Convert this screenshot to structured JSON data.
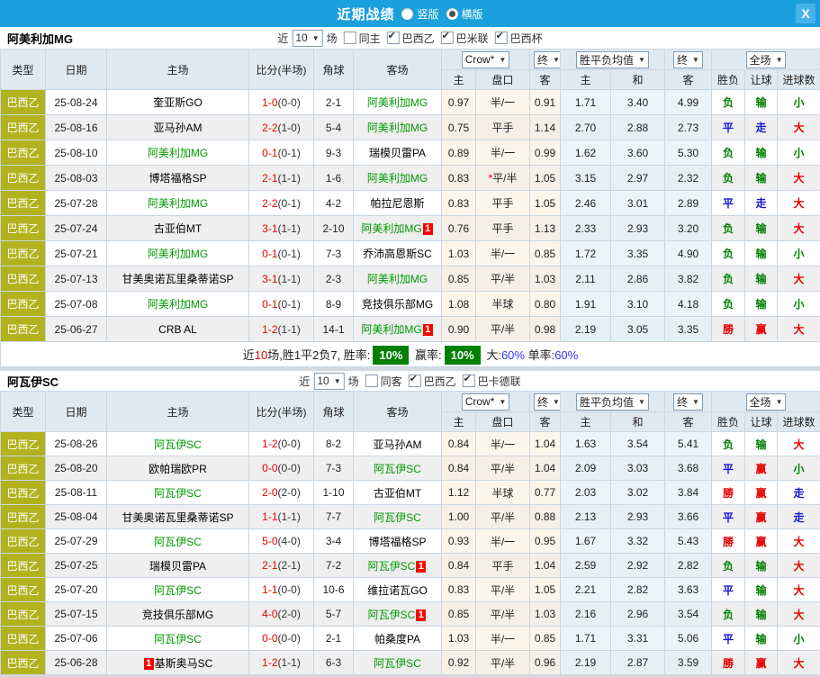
{
  "titlebar": {
    "title": "近期战绩",
    "options": [
      {
        "label": "竖版",
        "selected": false
      },
      {
        "label": "横版",
        "selected": true
      }
    ],
    "close_label": "X"
  },
  "header_cols": {
    "type": "类型",
    "date": "日期",
    "home": "主场",
    "score": "比分(半场)",
    "corner": "角球",
    "away": "客场",
    "odds_home": "主",
    "odds_handicap": "盘口",
    "odds_away": "客",
    "avg_home": "主",
    "avg_draw": "和",
    "avg_away": "客",
    "result": "胜负",
    "handicap": "让球",
    "goals": "进球数"
  },
  "group_selects": {
    "odds": "Crow*",
    "final": "终",
    "avg": "胜平负均值",
    "final2": "终",
    "fulltime": "全场"
  },
  "badge_label": "1",
  "colors": {
    "topbar": "#1b9fdd",
    "type_cell": "#b2b21e",
    "focus_team": "#009900",
    "win_red": "#e60000",
    "lose_green": "#008000",
    "draw_blue": "#1515cd",
    "rate_box": "#008000",
    "header_bg": "#dfe9f2"
  },
  "sections": [
    {
      "team": "阿美利加MG",
      "filters": {
        "near": "近",
        "count": "10",
        "games": "场",
        "same": "同主",
        "same_checked": false,
        "leagues": [
          {
            "label": "巴西乙",
            "checked": true
          },
          {
            "label": "巴米联",
            "checked": true
          },
          {
            "label": "巴西杯",
            "checked": true
          }
        ]
      },
      "rows": [
        {
          "league": "巴西乙",
          "date": "25-08-24",
          "home": {
            "name": "奎亚斯GO"
          },
          "score": "1-0",
          "half": "(0-0)",
          "corner": "2-1",
          "away": {
            "name": "阿美利加MG",
            "focus": true
          },
          "odds": [
            "0.97",
            "半/一",
            "0.91"
          ],
          "star": false,
          "avg": [
            "1.71",
            "3.40",
            "4.99"
          ],
          "res": [
            [
              "负",
              "g"
            ],
            [
              "输",
              "g"
            ],
            [
              "小",
              "g"
            ]
          ]
        },
        {
          "league": "巴西乙",
          "date": "25-08-16",
          "home": {
            "name": "亚马孙AM"
          },
          "score": "2-2",
          "half": "(1-0)",
          "corner": "5-4",
          "away": {
            "name": "阿美利加MG",
            "focus": true
          },
          "odds": [
            "0.75",
            "平手",
            "1.14"
          ],
          "star": false,
          "avg": [
            "2.70",
            "2.88",
            "2.73"
          ],
          "res": [
            [
              "平",
              "b"
            ],
            [
              "走",
              "b"
            ],
            [
              "大",
              "r"
            ]
          ]
        },
        {
          "league": "巴西乙",
          "date": "25-08-10",
          "home": {
            "name": "阿美利加MG",
            "focus": true
          },
          "score": "0-1",
          "half": "(0-1)",
          "corner": "9-3",
          "away": {
            "name": "瑞模贝雷PA"
          },
          "odds": [
            "0.89",
            "半/一",
            "0.99"
          ],
          "star": false,
          "avg": [
            "1.62",
            "3.60",
            "5.30"
          ],
          "res": [
            [
              "负",
              "g"
            ],
            [
              "输",
              "g"
            ],
            [
              "小",
              "g"
            ]
          ]
        },
        {
          "league": "巴西乙",
          "date": "25-08-03",
          "home": {
            "name": "博塔福格SP"
          },
          "score": "2-1",
          "half": "(1-1)",
          "corner": "1-6",
          "away": {
            "name": "阿美利加MG",
            "focus": true
          },
          "odds": [
            "0.83",
            "平/半",
            "1.05"
          ],
          "star": true,
          "avg": [
            "3.15",
            "2.97",
            "2.32"
          ],
          "res": [
            [
              "负",
              "g"
            ],
            [
              "输",
              "g"
            ],
            [
              "大",
              "r"
            ]
          ]
        },
        {
          "league": "巴西乙",
          "date": "25-07-28",
          "home": {
            "name": "阿美利加MG",
            "focus": true
          },
          "score": "2-2",
          "half": "(0-1)",
          "corner": "4-2",
          "away": {
            "name": "帕拉尼恩斯"
          },
          "odds": [
            "0.83",
            "平手",
            "1.05"
          ],
          "star": false,
          "avg": [
            "2.46",
            "3.01",
            "2.89"
          ],
          "res": [
            [
              "平",
              "b"
            ],
            [
              "走",
              "b"
            ],
            [
              "大",
              "r"
            ]
          ]
        },
        {
          "league": "巴西乙",
          "date": "25-07-24",
          "home": {
            "name": "古亚伯MT"
          },
          "score": "3-1",
          "half": "(1-1)",
          "corner": "2-10",
          "away": {
            "name": "阿美利加MG",
            "focus": true,
            "badge": true
          },
          "odds": [
            "0.76",
            "平手",
            "1.13"
          ],
          "star": false,
          "avg": [
            "2.33",
            "2.93",
            "3.20"
          ],
          "res": [
            [
              "负",
              "g"
            ],
            [
              "输",
              "g"
            ],
            [
              "大",
              "r"
            ]
          ]
        },
        {
          "league": "巴西乙",
          "date": "25-07-21",
          "home": {
            "name": "阿美利加MG",
            "focus": true
          },
          "score": "0-1",
          "half": "(0-1)",
          "corner": "7-3",
          "away": {
            "name": "乔沛高恩斯SC"
          },
          "odds": [
            "1.03",
            "半/一",
            "0.85"
          ],
          "star": false,
          "avg": [
            "1.72",
            "3.35",
            "4.90"
          ],
          "res": [
            [
              "负",
              "g"
            ],
            [
              "输",
              "g"
            ],
            [
              "小",
              "g"
            ]
          ]
        },
        {
          "league": "巴西乙",
          "date": "25-07-13",
          "home": {
            "name": "甘美奥诺瓦里桑蒂诺SP"
          },
          "score": "3-1",
          "half": "(1-1)",
          "corner": "2-3",
          "away": {
            "name": "阿美利加MG",
            "focus": true
          },
          "odds": [
            "0.85",
            "平/半",
            "1.03"
          ],
          "star": false,
          "avg": [
            "2.11",
            "2.86",
            "3.82"
          ],
          "res": [
            [
              "负",
              "g"
            ],
            [
              "输",
              "g"
            ],
            [
              "大",
              "r"
            ]
          ]
        },
        {
          "league": "巴西乙",
          "date": "25-07-08",
          "home": {
            "name": "阿美利加MG",
            "focus": true
          },
          "score": "0-1",
          "half": "(0-1)",
          "corner": "8-9",
          "away": {
            "name": "竞技俱乐部MG"
          },
          "odds": [
            "1.08",
            "半球",
            "0.80"
          ],
          "star": false,
          "avg": [
            "1.91",
            "3.10",
            "4.18"
          ],
          "res": [
            [
              "负",
              "g"
            ],
            [
              "输",
              "g"
            ],
            [
              "小",
              "g"
            ]
          ]
        },
        {
          "league": "巴西乙",
          "date": "25-06-27",
          "home": {
            "name": "CRB AL"
          },
          "score": "1-2",
          "half": "(1-1)",
          "corner": "14-1",
          "away": {
            "name": "阿美利加MG",
            "focus": true,
            "badge": true
          },
          "odds": [
            "0.90",
            "平/半",
            "0.98"
          ],
          "star": false,
          "avg": [
            "2.19",
            "3.05",
            "3.35"
          ],
          "res": [
            [
              "勝",
              "r"
            ],
            [
              "赢",
              "r"
            ],
            [
              "大",
              "r"
            ]
          ]
        }
      ],
      "summary_segments": [
        {
          "t": "近",
          "s": "k"
        },
        {
          "t": "10",
          "s": "r"
        },
        {
          "t": "场,胜1平2负7, 胜率:",
          "s": "k"
        },
        {
          "t": "10%",
          "s": "box"
        },
        {
          "t": " 赢率:",
          "s": "k"
        },
        {
          "t": "10%",
          "s": "box"
        },
        {
          "t": " 大:",
          "s": "k"
        },
        {
          "t": "60%",
          "s": "b"
        },
        {
          "t": " 单率:",
          "s": "k"
        },
        {
          "t": "60%",
          "s": "b"
        }
      ]
    },
    {
      "team": "阿瓦伊SC",
      "filters": {
        "near": "近",
        "count": "10",
        "games": "场",
        "same": "同客",
        "same_checked": false,
        "leagues": [
          {
            "label": "巴西乙",
            "checked": true
          },
          {
            "label": "巴卡德联",
            "checked": true
          }
        ]
      },
      "rows": [
        {
          "league": "巴西乙",
          "date": "25-08-26",
          "home": {
            "name": "阿瓦伊SC",
            "focus": true
          },
          "score": "1-2",
          "half": "(0-0)",
          "corner": "8-2",
          "away": {
            "name": "亚马孙AM"
          },
          "odds": [
            "0.84",
            "半/一",
            "1.04"
          ],
          "star": false,
          "avg": [
            "1.63",
            "3.54",
            "5.41"
          ],
          "res": [
            [
              "负",
              "g"
            ],
            [
              "输",
              "g"
            ],
            [
              "大",
              "r"
            ]
          ]
        },
        {
          "league": "巴西乙",
          "date": "25-08-20",
          "home": {
            "name": "欧帕瑞欧PR"
          },
          "score": "0-0",
          "half": "(0-0)",
          "corner": "7-3",
          "away": {
            "name": "阿瓦伊SC",
            "focus": true
          },
          "odds": [
            "0.84",
            "平/半",
            "1.04"
          ],
          "star": false,
          "avg": [
            "2.09",
            "3.03",
            "3.68"
          ],
          "res": [
            [
              "平",
              "b"
            ],
            [
              "赢",
              "r"
            ],
            [
              "小",
              "g"
            ]
          ]
        },
        {
          "league": "巴西乙",
          "date": "25-08-11",
          "home": {
            "name": "阿瓦伊SC",
            "focus": true
          },
          "score": "2-0",
          "half": "(2-0)",
          "corner": "1-10",
          "away": {
            "name": "古亚伯MT"
          },
          "odds": [
            "1.12",
            "半球",
            "0.77"
          ],
          "star": false,
          "avg": [
            "2.03",
            "3.02",
            "3.84"
          ],
          "res": [
            [
              "勝",
              "r"
            ],
            [
              "赢",
              "r"
            ],
            [
              "走",
              "b"
            ]
          ]
        },
        {
          "league": "巴西乙",
          "date": "25-08-04",
          "home": {
            "name": "甘美奥诺瓦里桑蒂诺SP"
          },
          "score": "1-1",
          "half": "(1-1)",
          "corner": "7-7",
          "away": {
            "name": "阿瓦伊SC",
            "focus": true
          },
          "odds": [
            "1.00",
            "平/半",
            "0.88"
          ],
          "star": false,
          "avg": [
            "2.13",
            "2.93",
            "3.66"
          ],
          "res": [
            [
              "平",
              "b"
            ],
            [
              "赢",
              "r"
            ],
            [
              "走",
              "b"
            ]
          ]
        },
        {
          "league": "巴西乙",
          "date": "25-07-29",
          "home": {
            "name": "阿瓦伊SC",
            "focus": true
          },
          "score": "5-0",
          "half": "(4-0)",
          "corner": "3-4",
          "away": {
            "name": "博塔福格SP"
          },
          "odds": [
            "0.93",
            "半/一",
            "0.95"
          ],
          "star": false,
          "avg": [
            "1.67",
            "3.32",
            "5.43"
          ],
          "res": [
            [
              "勝",
              "r"
            ],
            [
              "赢",
              "r"
            ],
            [
              "大",
              "r"
            ]
          ]
        },
        {
          "league": "巴西乙",
          "date": "25-07-25",
          "home": {
            "name": "瑞模贝雷PA"
          },
          "score": "2-1",
          "half": "(2-1)",
          "corner": "7-2",
          "away": {
            "name": "阿瓦伊SC",
            "focus": true,
            "badge": true
          },
          "odds": [
            "0.84",
            "平手",
            "1.04"
          ],
          "star": false,
          "avg": [
            "2.59",
            "2.92",
            "2.82"
          ],
          "res": [
            [
              "负",
              "g"
            ],
            [
              "输",
              "g"
            ],
            [
              "大",
              "r"
            ]
          ]
        },
        {
          "league": "巴西乙",
          "date": "25-07-20",
          "home": {
            "name": "阿瓦伊SC",
            "focus": true
          },
          "score": "1-1",
          "half": "(0-0)",
          "corner": "10-6",
          "away": {
            "name": "维拉诺瓦GO"
          },
          "odds": [
            "0.83",
            "平/半",
            "1.05"
          ],
          "star": false,
          "avg": [
            "2.21",
            "2.82",
            "3.63"
          ],
          "res": [
            [
              "平",
              "b"
            ],
            [
              "输",
              "g"
            ],
            [
              "大",
              "r"
            ]
          ]
        },
        {
          "league": "巴西乙",
          "date": "25-07-15",
          "home": {
            "name": "竞技俱乐部MG"
          },
          "score": "4-0",
          "half": "(2-0)",
          "corner": "5-7",
          "away": {
            "name": "阿瓦伊SC",
            "focus": true,
            "badge": true
          },
          "odds": [
            "0.85",
            "平/半",
            "1.03"
          ],
          "star": false,
          "avg": [
            "2.16",
            "2.96",
            "3.54"
          ],
          "res": [
            [
              "负",
              "g"
            ],
            [
              "输",
              "g"
            ],
            [
              "大",
              "r"
            ]
          ]
        },
        {
          "league": "巴西乙",
          "date": "25-07-06",
          "home": {
            "name": "阿瓦伊SC",
            "focus": true
          },
          "score": "0-0",
          "half": "(0-0)",
          "corner": "2-1",
          "away": {
            "name": "帕桑度PA"
          },
          "odds": [
            "1.03",
            "半/一",
            "0.85"
          ],
          "star": false,
          "avg": [
            "1.71",
            "3.31",
            "5.06"
          ],
          "res": [
            [
              "平",
              "b"
            ],
            [
              "输",
              "g"
            ],
            [
              "小",
              "g"
            ]
          ]
        },
        {
          "league": "巴西乙",
          "date": "25-06-28",
          "home": {
            "name": "基斯奥马SC",
            "badge_before": true
          },
          "score": "1-2",
          "half": "(1-1)",
          "corner": "6-3",
          "away": {
            "name": "阿瓦伊SC",
            "focus": true
          },
          "odds": [
            "0.92",
            "平/半",
            "0.96"
          ],
          "star": false,
          "avg": [
            "2.19",
            "2.87",
            "3.59"
          ],
          "res": [
            [
              "勝",
              "r"
            ],
            [
              "赢",
              "r"
            ],
            [
              "大",
              "r"
            ]
          ]
        }
      ],
      "summary_segments": null
    }
  ]
}
